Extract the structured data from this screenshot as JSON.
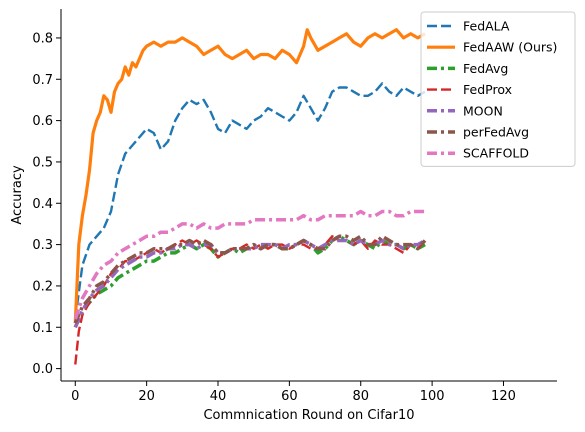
{
  "chart_data": {
    "type": "line",
    "xlabel": "Commnication Round on Cifar10",
    "ylabel": "Accuracy",
    "xlim": [
      -4,
      135
    ],
    "ylim": [
      -0.03,
      0.87
    ],
    "x_ticks": [
      0,
      20,
      40,
      60,
      80,
      100,
      120
    ],
    "y_ticks": [
      0.0,
      0.1,
      0.2,
      0.3,
      0.4,
      0.5,
      0.6,
      0.7,
      0.8
    ],
    "y_tick_labels": [
      "0.0",
      "0.1",
      "0.2",
      "0.3",
      "0.4",
      "0.5",
      "0.6",
      "0.7",
      "0.8"
    ],
    "grid": false,
    "legend_position": "top-right",
    "series": [
      {
        "name": "FedALA",
        "color": "#1f77b4",
        "style": "dashed",
        "x": [
          0,
          2,
          4,
          6,
          8,
          10,
          12,
          14,
          16,
          18,
          20,
          22,
          24,
          26,
          28,
          30,
          32,
          34,
          36,
          38,
          40,
          42,
          44,
          46,
          48,
          50,
          52,
          54,
          56,
          58,
          60,
          62,
          64,
          66,
          68,
          70,
          72,
          74,
          76,
          78,
          80,
          82,
          84,
          86,
          88,
          90,
          92,
          94,
          96,
          98
        ],
        "y": [
          0.12,
          0.25,
          0.3,
          0.32,
          0.34,
          0.38,
          0.47,
          0.52,
          0.54,
          0.56,
          0.58,
          0.57,
          0.53,
          0.55,
          0.6,
          0.63,
          0.65,
          0.64,
          0.65,
          0.62,
          0.58,
          0.57,
          0.6,
          0.59,
          0.58,
          0.6,
          0.61,
          0.63,
          0.62,
          0.61,
          0.6,
          0.62,
          0.66,
          0.63,
          0.6,
          0.63,
          0.67,
          0.68,
          0.68,
          0.67,
          0.66,
          0.66,
          0.67,
          0.69,
          0.67,
          0.66,
          0.68,
          0.67,
          0.66,
          0.67
        ]
      },
      {
        "name": "FedAAW (Ours)",
        "color": "#ff7f0e",
        "style": "solid",
        "x": [
          0,
          1,
          2,
          3,
          4,
          5,
          6,
          7,
          8,
          9,
          10,
          11,
          12,
          13,
          14,
          15,
          16,
          17,
          18,
          19,
          20,
          22,
          24,
          26,
          28,
          30,
          32,
          34,
          36,
          38,
          40,
          42,
          44,
          46,
          48,
          50,
          52,
          54,
          56,
          58,
          60,
          62,
          64,
          65,
          66,
          68,
          70,
          72,
          74,
          76,
          78,
          80,
          82,
          84,
          86,
          88,
          90,
          92,
          94,
          96,
          98
        ],
        "y": [
          0.11,
          0.3,
          0.37,
          0.42,
          0.48,
          0.57,
          0.6,
          0.62,
          0.66,
          0.65,
          0.62,
          0.67,
          0.69,
          0.7,
          0.73,
          0.71,
          0.74,
          0.73,
          0.75,
          0.77,
          0.78,
          0.79,
          0.78,
          0.79,
          0.79,
          0.8,
          0.79,
          0.78,
          0.76,
          0.77,
          0.78,
          0.76,
          0.75,
          0.76,
          0.77,
          0.75,
          0.76,
          0.76,
          0.75,
          0.77,
          0.76,
          0.74,
          0.78,
          0.82,
          0.8,
          0.77,
          0.78,
          0.79,
          0.8,
          0.81,
          0.79,
          0.78,
          0.8,
          0.81,
          0.8,
          0.81,
          0.82,
          0.8,
          0.81,
          0.8,
          0.81
        ]
      },
      {
        "name": "FedAvg",
        "color": "#2ca02c",
        "style": "dashdot",
        "x": [
          0,
          2,
          4,
          6,
          8,
          10,
          12,
          14,
          16,
          18,
          20,
          22,
          24,
          26,
          28,
          30,
          32,
          34,
          36,
          38,
          40,
          42,
          44,
          46,
          48,
          50,
          52,
          54,
          56,
          58,
          60,
          62,
          64,
          66,
          68,
          70,
          72,
          74,
          76,
          78,
          80,
          82,
          84,
          86,
          88,
          90,
          92,
          94,
          96,
          98
        ],
        "y": [
          0.1,
          0.14,
          0.16,
          0.18,
          0.19,
          0.2,
          0.22,
          0.23,
          0.24,
          0.25,
          0.26,
          0.26,
          0.27,
          0.28,
          0.28,
          0.29,
          0.3,
          0.29,
          0.3,
          0.29,
          0.27,
          0.28,
          0.29,
          0.28,
          0.29,
          0.3,
          0.29,
          0.3,
          0.3,
          0.29,
          0.29,
          0.3,
          0.31,
          0.3,
          0.28,
          0.29,
          0.31,
          0.32,
          0.31,
          0.3,
          0.31,
          0.3,
          0.29,
          0.31,
          0.3,
          0.3,
          0.29,
          0.3,
          0.29,
          0.3
        ]
      },
      {
        "name": "FedProx",
        "color": "#d62728",
        "style": "dashed",
        "x": [
          0,
          1,
          2,
          4,
          6,
          8,
          10,
          12,
          14,
          16,
          18,
          20,
          22,
          24,
          26,
          28,
          30,
          32,
          34,
          36,
          38,
          40,
          42,
          44,
          46,
          48,
          50,
          52,
          54,
          56,
          58,
          60,
          62,
          64,
          66,
          68,
          70,
          72,
          74,
          76,
          78,
          80,
          82,
          84,
          86,
          88,
          90,
          92,
          94,
          96,
          98
        ],
        "y": [
          0.01,
          0.09,
          0.13,
          0.16,
          0.18,
          0.2,
          0.23,
          0.24,
          0.26,
          0.26,
          0.27,
          0.28,
          0.29,
          0.28,
          0.29,
          0.3,
          0.31,
          0.3,
          0.31,
          0.3,
          0.29,
          0.27,
          0.28,
          0.29,
          0.29,
          0.3,
          0.29,
          0.3,
          0.29,
          0.3,
          0.3,
          0.29,
          0.3,
          0.3,
          0.29,
          0.29,
          0.3,
          0.32,
          0.31,
          0.31,
          0.3,
          0.31,
          0.29,
          0.31,
          0.3,
          0.3,
          0.29,
          0.28,
          0.3,
          0.29,
          0.31
        ]
      },
      {
        "name": "MOON",
        "color": "#9467bd",
        "style": "dashdot",
        "x": [
          0,
          2,
          4,
          6,
          8,
          10,
          12,
          14,
          16,
          18,
          20,
          22,
          24,
          26,
          28,
          30,
          32,
          34,
          36,
          38,
          40,
          42,
          44,
          46,
          48,
          50,
          52,
          54,
          56,
          58,
          60,
          62,
          64,
          66,
          68,
          70,
          72,
          74,
          76,
          78,
          80,
          82,
          84,
          86,
          88,
          90,
          92,
          94,
          96,
          98
        ],
        "y": [
          0.1,
          0.14,
          0.17,
          0.19,
          0.2,
          0.22,
          0.24,
          0.25,
          0.26,
          0.27,
          0.27,
          0.28,
          0.28,
          0.29,
          0.29,
          0.3,
          0.3,
          0.29,
          0.3,
          0.3,
          0.28,
          0.28,
          0.29,
          0.29,
          0.29,
          0.29,
          0.3,
          0.3,
          0.3,
          0.29,
          0.3,
          0.3,
          0.31,
          0.3,
          0.29,
          0.3,
          0.31,
          0.31,
          0.31,
          0.3,
          0.31,
          0.3,
          0.3,
          0.31,
          0.3,
          0.3,
          0.29,
          0.3,
          0.3,
          0.31
        ]
      },
      {
        "name": "perFedAvg",
        "color": "#8c564b",
        "style": "dashdot",
        "x": [
          0,
          2,
          4,
          6,
          8,
          10,
          12,
          14,
          16,
          18,
          20,
          22,
          24,
          26,
          28,
          30,
          32,
          34,
          36,
          38,
          40,
          42,
          44,
          46,
          48,
          50,
          52,
          54,
          56,
          58,
          60,
          62,
          64,
          66,
          68,
          70,
          72,
          74,
          76,
          78,
          80,
          82,
          84,
          86,
          88,
          90,
          92,
          94,
          96,
          98
        ],
        "y": [
          0.11,
          0.15,
          0.17,
          0.2,
          0.21,
          0.23,
          0.25,
          0.26,
          0.27,
          0.28,
          0.28,
          0.29,
          0.29,
          0.29,
          0.3,
          0.3,
          0.31,
          0.3,
          0.31,
          0.3,
          0.28,
          0.28,
          0.29,
          0.29,
          0.29,
          0.3,
          0.29,
          0.3,
          0.3,
          0.29,
          0.29,
          0.3,
          0.31,
          0.3,
          0.29,
          0.29,
          0.31,
          0.32,
          0.32,
          0.31,
          0.32,
          0.3,
          0.3,
          0.32,
          0.31,
          0.3,
          0.3,
          0.3,
          0.29,
          0.31
        ]
      },
      {
        "name": "SCAFFOLD",
        "color": "#e377c2",
        "style": "dashdot",
        "x": [
          0,
          2,
          4,
          6,
          8,
          10,
          12,
          14,
          16,
          18,
          20,
          22,
          24,
          26,
          28,
          30,
          32,
          34,
          36,
          38,
          40,
          42,
          44,
          46,
          48,
          50,
          52,
          54,
          56,
          58,
          60,
          62,
          64,
          66,
          68,
          70,
          72,
          74,
          76,
          78,
          80,
          82,
          84,
          86,
          88,
          90,
          92,
          94,
          96,
          98
        ],
        "y": [
          0.12,
          0.17,
          0.2,
          0.23,
          0.25,
          0.26,
          0.28,
          0.29,
          0.3,
          0.31,
          0.32,
          0.32,
          0.33,
          0.33,
          0.34,
          0.35,
          0.35,
          0.34,
          0.35,
          0.34,
          0.34,
          0.35,
          0.35,
          0.35,
          0.35,
          0.36,
          0.36,
          0.36,
          0.36,
          0.36,
          0.36,
          0.36,
          0.37,
          0.36,
          0.36,
          0.37,
          0.37,
          0.37,
          0.37,
          0.37,
          0.38,
          0.37,
          0.37,
          0.38,
          0.38,
          0.37,
          0.37,
          0.38,
          0.38,
          0.38
        ]
      }
    ]
  }
}
